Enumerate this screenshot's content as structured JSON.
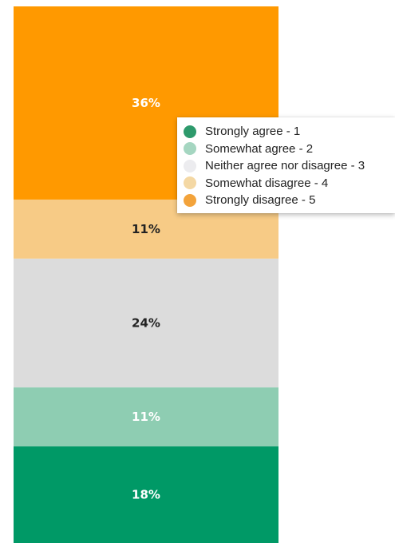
{
  "chart_data": {
    "type": "bar",
    "stacked": true,
    "categories": [
      ""
    ],
    "series": [
      {
        "name": "Strongly agree - 1",
        "values": [
          18
        ],
        "label": "18%",
        "color": "#009966",
        "label_color": "#ffffff"
      },
      {
        "name": "Somewhat agree - 2",
        "values": [
          11
        ],
        "label": "11%",
        "color": "#8ecdb2",
        "label_color": "#ffffff"
      },
      {
        "name": "Neither agree nor disagree - 3",
        "values": [
          24
        ],
        "label": "24%",
        "color": "#dcdcdc",
        "label_color": "#222222"
      },
      {
        "name": "Somewhat disagree - 4",
        "values": [
          11
        ],
        "label": "11%",
        "color": "#f7cb86",
        "label_color": "#222222"
      },
      {
        "name": "Strongly disagree - 5",
        "values": [
          36
        ],
        "label": "36%",
        "color": "#ff9900",
        "label_color": "#ffffff"
      }
    ],
    "ylim": [
      0,
      100
    ],
    "legend_position": "top-right",
    "grid": false
  },
  "legend": {
    "items": [
      {
        "label": "Strongly agree - 1",
        "color": "#2e9a6c"
      },
      {
        "label": "Somewhat agree - 2",
        "color": "#a5d6c1"
      },
      {
        "label": "Neither agree nor disagree - 3",
        "color": "#ececef"
      },
      {
        "label": "Somewhat disagree - 4",
        "color": "#f4d8a4"
      },
      {
        "label": "Strongly disagree - 5",
        "color": "#f3a33b"
      }
    ]
  }
}
